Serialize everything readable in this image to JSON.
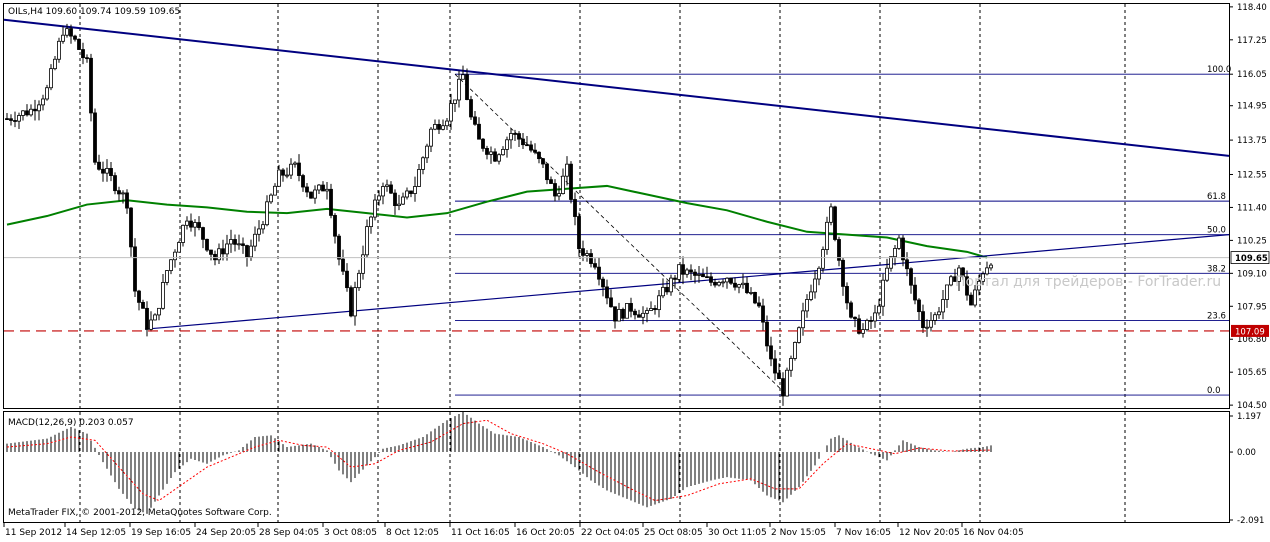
{
  "window": {
    "symbol_header": "OILs,H4  109.60 109.74 109.59 109.65",
    "watermark": "Портал для трейдеров - ForTrader.ru",
    "copyright": "MetaTrader FIX, © 2001-2012, MetaQuotes Software Corp."
  },
  "colors": {
    "background": "#ffffff",
    "up_candle": "#000000",
    "down_candle": "#000000",
    "moving_average": "#008000",
    "trendline": "#000080",
    "support_dashed": "#c00000",
    "fib_lines": "#000080",
    "macd_signal": "#ff0000",
    "current_price_line": "#c0c0c0"
  },
  "chart_data": [
    {
      "type": "candlestick",
      "title": "OILs,H4",
      "timeframe": "H4",
      "ohlc_current": {
        "open": 109.6,
        "high": 109.74,
        "low": 109.59,
        "close": 109.65
      },
      "ylim": [
        104.4,
        118.5
      ],
      "y_ticks": [
        "118.40",
        "117.25",
        "116.05",
        "114.95",
        "113.75",
        "112.55",
        "111.40",
        "110.25",
        "109.10",
        "107.95",
        "106.80",
        "105.65",
        "104.50"
      ],
      "x_tick_labels": [
        "11 Sep 2012",
        "14 Sep 12:05",
        "19 Sep 16:05",
        "24 Sep 20:05",
        "28 Sep 04:05",
        "3 Oct 08:05",
        "8 Oct 12:05",
        "11 Oct 16:05",
        "16 Oct 20:05",
        "22 Oct 04:05",
        "25 Oct 08:05",
        "30 Oct 11:05",
        "2 Nov 15:05",
        "7 Nov 16:05",
        "12 Nov 20:05",
        "16 Nov 04:05"
      ],
      "current_price_label": "109.65",
      "support_level": {
        "value": 107.09,
        "label": "107.09"
      },
      "fibonacci": {
        "high": 116.05,
        "low": 104.85,
        "levels": [
          {
            "label": "100.0",
            "value": 116.05
          },
          {
            "label": "61.8",
            "value": 111.62
          },
          {
            "label": "50.0",
            "value": 110.45
          },
          {
            "label": "38.2",
            "value": 109.1
          },
          {
            "label": "23.6",
            "value": 107.45
          },
          {
            "label": "0.0",
            "value": 104.85
          }
        ]
      },
      "trendlines": [
        {
          "name": "descending",
          "from": {
            "bar": 0,
            "price": 117.9
          },
          "to": {
            "bar": 307,
            "price": 113.2
          }
        },
        {
          "name": "ascending",
          "from": {
            "bar": 36,
            "price": 107.15
          },
          "to": {
            "bar": 307,
            "price": 110.45
          }
        }
      ],
      "moving_average": {
        "points": [
          [
            0,
            110.8
          ],
          [
            10,
            111.1
          ],
          [
            20,
            111.5
          ],
          [
            30,
            111.65
          ],
          [
            40,
            111.5
          ],
          [
            50,
            111.4
          ],
          [
            60,
            111.25
          ],
          [
            70,
            111.2
          ],
          [
            80,
            111.35
          ],
          [
            90,
            111.2
          ],
          [
            100,
            111.05
          ],
          [
            110,
            111.2
          ],
          [
            120,
            111.6
          ],
          [
            130,
            111.95
          ],
          [
            140,
            112.05
          ],
          [
            150,
            112.15
          ],
          [
            160,
            111.85
          ],
          [
            170,
            111.55
          ],
          [
            180,
            111.3
          ],
          [
            190,
            110.9
          ],
          [
            200,
            110.55
          ],
          [
            210,
            110.45
          ],
          [
            220,
            110.35
          ],
          [
            230,
            110.05
          ],
          [
            240,
            109.85
          ],
          [
            245,
            109.65
          ]
        ]
      },
      "bars_count": 308,
      "price_path": [
        [
          0,
          114.5
        ],
        [
          6,
          114.8
        ],
        [
          10,
          115.5
        ],
        [
          14,
          117.6
        ],
        [
          17,
          117.2
        ],
        [
          20,
          116.4
        ],
        [
          22,
          113.0
        ],
        [
          26,
          112.4
        ],
        [
          30,
          111.6
        ],
        [
          32,
          108.5
        ],
        [
          35,
          107.3
        ],
        [
          37,
          107.5
        ],
        [
          40,
          109.2
        ],
        [
          45,
          111.1
        ],
        [
          48,
          110.6
        ],
        [
          52,
          109.6
        ],
        [
          56,
          110.3
        ],
        [
          60,
          109.7
        ],
        [
          64,
          111.0
        ],
        [
          68,
          112.5
        ],
        [
          72,
          112.8
        ],
        [
          76,
          111.8
        ],
        [
          80,
          112.2
        ],
        [
          83,
          109.6
        ],
        [
          86,
          107.8
        ],
        [
          90,
          110.6
        ],
        [
          94,
          112.3
        ],
        [
          98,
          111.4
        ],
        [
          102,
          112.2
        ],
        [
          106,
          114.1
        ],
        [
          110,
          114.6
        ],
        [
          114,
          116.0
        ],
        [
          116,
          114.5
        ],
        [
          118,
          113.7
        ],
        [
          122,
          113.2
        ],
        [
          126,
          114.0
        ],
        [
          130,
          113.6
        ],
        [
          134,
          112.8
        ],
        [
          137,
          111.8
        ],
        [
          140,
          112.7
        ],
        [
          143,
          110.0
        ],
        [
          147,
          109.5
        ],
        [
          152,
          107.6
        ],
        [
          156,
          107.9
        ],
        [
          160,
          107.6
        ],
        [
          164,
          108.4
        ],
        [
          168,
          109.2
        ],
        [
          172,
          109.0
        ],
        [
          176,
          108.8
        ],
        [
          180,
          109.0
        ],
        [
          184,
          108.6
        ],
        [
          188,
          107.9
        ],
        [
          191,
          106.0
        ],
        [
          194,
          105.0
        ],
        [
          197,
          106.5
        ],
        [
          200,
          108.2
        ],
        [
          203,
          109.5
        ],
        [
          206,
          111.3
        ],
        [
          208,
          109.6
        ],
        [
          211,
          107.4
        ],
        [
          214,
          107.1
        ],
        [
          217,
          107.6
        ],
        [
          220,
          109.2
        ],
        [
          223,
          110.3
        ],
        [
          226,
          108.6
        ],
        [
          229,
          107.3
        ],
        [
          232,
          107.6
        ],
        [
          235,
          108.5
        ],
        [
          238,
          109.3
        ],
        [
          241,
          108.0
        ],
        [
          244,
          109.2
        ],
        [
          246,
          109.6
        ]
      ]
    },
    {
      "type": "histogram",
      "title": "MACD(12,26,9) 0.203 0.057",
      "ylim": [
        -2.091,
        1.197
      ],
      "y_ticks": [
        "1.197",
        "0.00",
        "-2.091"
      ],
      "macd_path": [
        [
          0,
          0.25
        ],
        [
          10,
          0.4
        ],
        [
          16,
          0.75
        ],
        [
          20,
          0.55
        ],
        [
          24,
          -0.3
        ],
        [
          28,
          -1.1
        ],
        [
          32,
          -1.7
        ],
        [
          35,
          -1.85
        ],
        [
          38,
          -1.3
        ],
        [
          42,
          -0.6
        ],
        [
          46,
          -0.2
        ],
        [
          50,
          -0.35
        ],
        [
          54,
          -0.1
        ],
        [
          58,
          0.05
        ],
        [
          62,
          0.45
        ],
        [
          66,
          0.5
        ],
        [
          70,
          0.15
        ],
        [
          76,
          0.25
        ],
        [
          80,
          0.05
        ],
        [
          83,
          -0.55
        ],
        [
          86,
          -0.9
        ],
        [
          90,
          -0.4
        ],
        [
          94,
          0.1
        ],
        [
          98,
          0.2
        ],
        [
          104,
          0.45
        ],
        [
          110,
          0.95
        ],
        [
          114,
          1.2
        ],
        [
          118,
          0.85
        ],
        [
          122,
          0.55
        ],
        [
          128,
          0.45
        ],
        [
          134,
          0.15
        ],
        [
          138,
          -0.1
        ],
        [
          142,
          -0.45
        ],
        [
          146,
          -0.85
        ],
        [
          150,
          -1.15
        ],
        [
          156,
          -1.45
        ],
        [
          160,
          -1.65
        ],
        [
          166,
          -1.4
        ],
        [
          170,
          -1.05
        ],
        [
          176,
          -0.85
        ],
        [
          180,
          -0.75
        ],
        [
          186,
          -0.85
        ],
        [
          190,
          -1.3
        ],
        [
          194,
          -1.5
        ],
        [
          198,
          -1.05
        ],
        [
          202,
          -0.4
        ],
        [
          206,
          0.4
        ],
        [
          208,
          0.5
        ],
        [
          212,
          0.2
        ],
        [
          216,
          -0.05
        ],
        [
          220,
          -0.25
        ],
        [
          224,
          0.35
        ],
        [
          228,
          0.15
        ],
        [
          232,
          0.05
        ],
        [
          236,
          0.0
        ],
        [
          240,
          0.1
        ],
        [
          244,
          0.15
        ],
        [
          246,
          0.2
        ]
      ],
      "signal_path": [
        [
          0,
          0.15
        ],
        [
          10,
          0.25
        ],
        [
          16,
          0.45
        ],
        [
          22,
          0.35
        ],
        [
          28,
          -0.45
        ],
        [
          34,
          -1.25
        ],
        [
          38,
          -1.45
        ],
        [
          44,
          -0.95
        ],
        [
          50,
          -0.45
        ],
        [
          56,
          -0.15
        ],
        [
          62,
          0.15
        ],
        [
          68,
          0.35
        ],
        [
          74,
          0.2
        ],
        [
          80,
          0.15
        ],
        [
          86,
          -0.45
        ],
        [
          92,
          -0.35
        ],
        [
          98,
          0.05
        ],
        [
          106,
          0.3
        ],
        [
          114,
          0.85
        ],
        [
          120,
          0.95
        ],
        [
          126,
          0.55
        ],
        [
          134,
          0.25
        ],
        [
          140,
          -0.05
        ],
        [
          148,
          -0.6
        ],
        [
          156,
          -1.1
        ],
        [
          162,
          -1.45
        ],
        [
          170,
          -1.3
        ],
        [
          178,
          -0.95
        ],
        [
          186,
          -0.8
        ],
        [
          192,
          -1.1
        ],
        [
          198,
          -1.1
        ],
        [
          204,
          -0.35
        ],
        [
          210,
          0.25
        ],
        [
          216,
          0.1
        ],
        [
          222,
          -0.05
        ],
        [
          228,
          0.12
        ],
        [
          236,
          0.03
        ],
        [
          246,
          0.06
        ]
      ]
    }
  ]
}
